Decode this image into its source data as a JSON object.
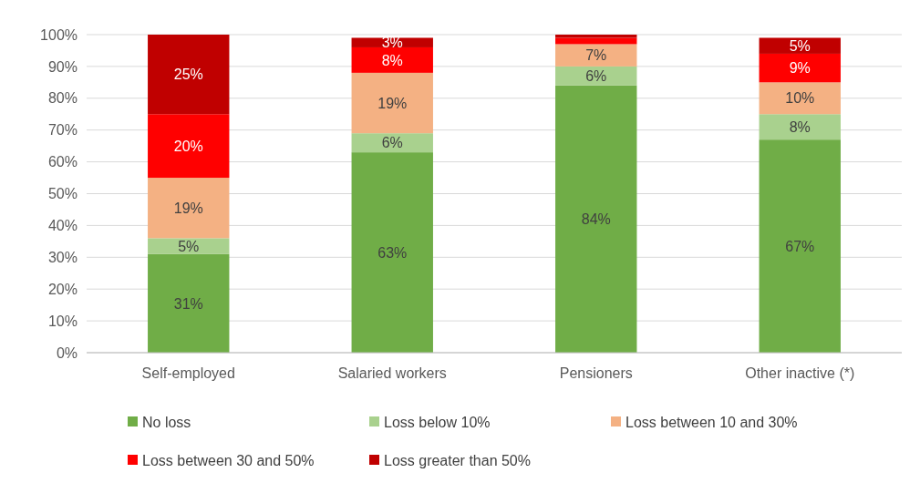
{
  "chart_data": {
    "type": "bar",
    "stacked": true,
    "categories": [
      "Self-employed",
      "Salaried workers",
      "Pensioners",
      "Other inactive (*)"
    ],
    "series": [
      {
        "name": "No loss",
        "color": "#70ad47",
        "values": [
          31,
          63,
          84,
          67
        ],
        "value_labels": [
          "31%",
          "63%",
          "84%",
          "67%"
        ]
      },
      {
        "name": "Loss below 10%",
        "color": "#a9d18e",
        "values": [
          5,
          6,
          6,
          8
        ],
        "value_labels": [
          "5%",
          "6%",
          "6%",
          "8%"
        ]
      },
      {
        "name": "Loss between 10 and 30%",
        "color": "#f4b183",
        "values": [
          19,
          19,
          7,
          10
        ],
        "value_labels": [
          "19%",
          "19%",
          "7%",
          "10%"
        ]
      },
      {
        "name": "Loss between 30 and 50%",
        "color": "#ff0000",
        "values": [
          20,
          8,
          2,
          9
        ],
        "value_labels": [
          "20%",
          "8%",
          null,
          "9%"
        ]
      },
      {
        "name": "Loss greater than 50%",
        "color": "#c00000",
        "values": [
          25,
          3,
          1,
          5
        ],
        "value_labels": [
          "25%",
          "3%",
          null,
          "5%"
        ]
      }
    ],
    "ylim": [
      0,
      100
    ],
    "yticks": [
      {
        "value": 0,
        "label": "0%"
      },
      {
        "value": 10,
        "label": "10%"
      },
      {
        "value": 20,
        "label": "20%"
      },
      {
        "value": 30,
        "label": "30%"
      },
      {
        "value": 40,
        "label": "40%"
      },
      {
        "value": 50,
        "label": "50%"
      },
      {
        "value": 60,
        "label": "60%"
      },
      {
        "value": 70,
        "label": "70%"
      },
      {
        "value": 80,
        "label": "80%"
      },
      {
        "value": 90,
        "label": "90%"
      },
      {
        "value": 100,
        "label": "100%"
      }
    ],
    "grid": "y",
    "legend": "bottom"
  }
}
